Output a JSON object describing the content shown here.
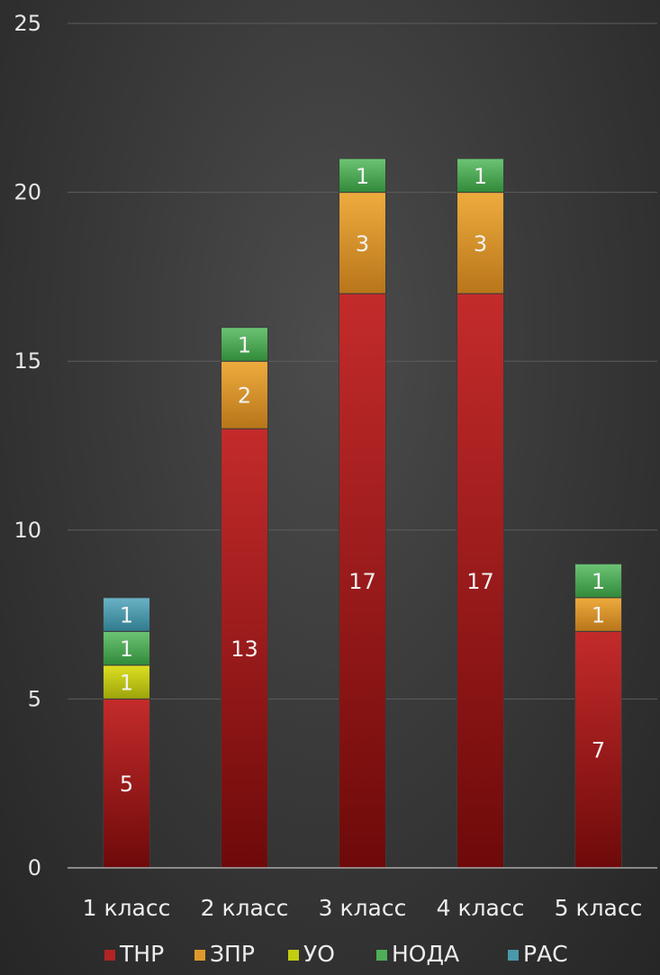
{
  "chart_data": {
    "type": "bar",
    "stacked": true,
    "categories": [
      "1 класс",
      "2 класс",
      "3 класс",
      "4 класс",
      "5 класс"
    ],
    "series": [
      {
        "name": "ТНР",
        "color": "#b22424",
        "values": [
          5,
          13,
          17,
          17,
          7
        ]
      },
      {
        "name": "ЗПР",
        "color": "#dd9a2c",
        "values": [
          0,
          2,
          3,
          3,
          1
        ]
      },
      {
        "name": "УО",
        "color": "#c2cc12",
        "values": [
          1,
          0,
          0,
          0,
          0
        ]
      },
      {
        "name": "НОДА",
        "color": "#4fae58",
        "values": [
          1,
          1,
          1,
          1,
          1
        ]
      },
      {
        "name": "РАС",
        "color": "#4a98ab",
        "values": [
          1,
          0,
          0,
          0,
          0
        ]
      }
    ],
    "ylim": [
      0,
      25
    ],
    "yticks": [
      "0",
      "5",
      "10",
      "15",
      "20",
      "25"
    ],
    "grid": true,
    "legend": "bottom"
  }
}
